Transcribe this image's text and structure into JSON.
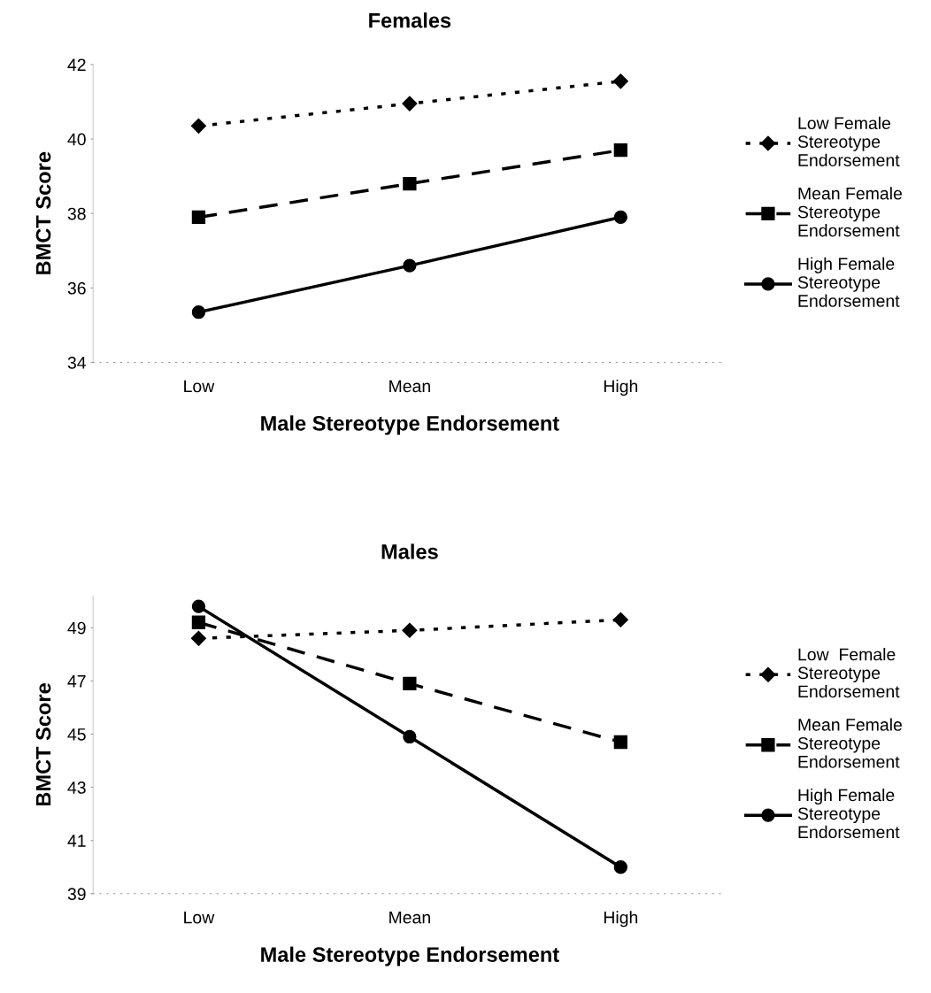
{
  "chart_data": [
    {
      "type": "line",
      "title": "Females",
      "xlabel": "Male Stereotype Endorsement",
      "ylabel": "BMCT Score",
      "categories": [
        "Low",
        "Mean",
        "High"
      ],
      "ylim": [
        34,
        42
      ],
      "yticks": [
        34,
        36,
        38,
        40,
        42
      ],
      "grid": false,
      "legend": "right",
      "series": [
        {
          "name": "Low Female\nStereotype\nEndorsement",
          "color": "#000000",
          "marker": "diamond",
          "line_style": "dotted",
          "values": [
            40.35,
            40.95,
            41.55
          ]
        },
        {
          "name": "Mean Female\nStereotype\nEndorsement",
          "color": "#000000",
          "marker": "square",
          "line_style": "dashed",
          "values": [
            37.9,
            38.8,
            39.7
          ]
        },
        {
          "name": "High Female\nStereotype\nEndorsement",
          "color": "#000000",
          "marker": "circle",
          "line_style": "solid",
          "values": [
            35.35,
            36.6,
            37.9
          ]
        }
      ]
    },
    {
      "type": "line",
      "title": "Males",
      "xlabel": "Male Stereotype Endorsement",
      "ylabel": "BMCT Score",
      "categories": [
        "Low",
        "Mean",
        "High"
      ],
      "ylim": [
        39,
        50.2
      ],
      "yticks": [
        39,
        41,
        43,
        45,
        47,
        49
      ],
      "grid": false,
      "legend": "right",
      "series": [
        {
          "name": "Low  Female\nStereotype\nEndorsement",
          "color": "#000000",
          "marker": "diamond",
          "line_style": "dotted",
          "values": [
            48.6,
            48.9,
            49.3
          ]
        },
        {
          "name": "Mean Female\nStereotype\nEndorsement",
          "color": "#000000",
          "marker": "square",
          "line_style": "dashed",
          "values": [
            49.2,
            46.9,
            44.7
          ]
        },
        {
          "name": "High Female\nStereotype\nEndorsement",
          "color": "#000000",
          "marker": "circle",
          "line_style": "solid",
          "values": [
            49.8,
            44.9,
            40.0
          ]
        }
      ]
    }
  ]
}
